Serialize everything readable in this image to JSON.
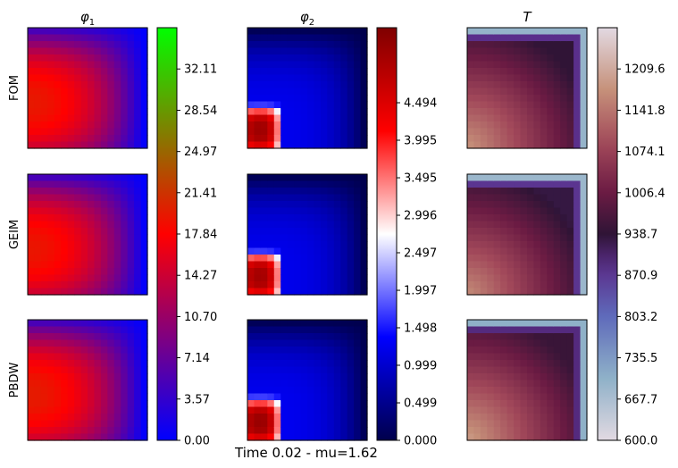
{
  "chart_data": {
    "type": "heatmap",
    "columns": [
      {
        "key": "phi1",
        "title_symbol": "φ",
        "title_sub": "1",
        "colormap": "brg",
        "colorbar": {
          "min": 0.0,
          "max": 35.68,
          "ticks": [
            0.0,
            3.57,
            7.14,
            10.7,
            14.27,
            17.84,
            21.41,
            24.97,
            28.54,
            32.11
          ],
          "tick_labels": [
            "0.00",
            "3.57",
            "7.14",
            "10.70",
            "14.27",
            "17.84",
            "21.41",
            "24.97",
            "28.54",
            "32.11"
          ]
        }
      },
      {
        "key": "phi2",
        "title_symbol": "φ",
        "title_sub": "2",
        "colormap": "seismic",
        "colorbar": {
          "min": 0.0,
          "max": 5.493,
          "ticks": [
            0.0,
            0.499,
            0.999,
            1.498,
            1.997,
            2.497,
            2.996,
            3.495,
            3.995,
            4.494
          ],
          "tick_labels": [
            "0.000",
            "0.499",
            "0.999",
            "1.498",
            "1.997",
            "2.497",
            "2.996",
            "3.495",
            "3.995",
            "4.494"
          ]
        }
      },
      {
        "key": "T",
        "title_symbol": "T",
        "title_sub": "",
        "colormap": "twilight",
        "colorbar": {
          "min": 600.0,
          "max": 1277.3,
          "ticks": [
            600.0,
            667.7,
            735.5,
            803.2,
            870.9,
            938.7,
            1006.4,
            1074.1,
            1141.8,
            1209.6
          ],
          "tick_labels": [
            "600.0",
            "667.7",
            "735.5",
            "803.2",
            "870.9",
            "938.7",
            "1006.4",
            "1074.1",
            "1141.8",
            "1209.6"
          ]
        }
      }
    ],
    "rows": [
      "FOM",
      "GEIM",
      "PBDW"
    ],
    "fields": {
      "phi1": {
        "description": "max near left-center, decays toward right/top edges",
        "peak": 19.5
      },
      "phi2": {
        "description": "hot spot bottom-left block, elsewhere low",
        "peak": 5.2
      },
      "T": {
        "description": "warm bottom-left, cold band along top and right edges",
        "peak": 1180
      }
    },
    "footer": "Time 0.02 - mu=1.62"
  }
}
